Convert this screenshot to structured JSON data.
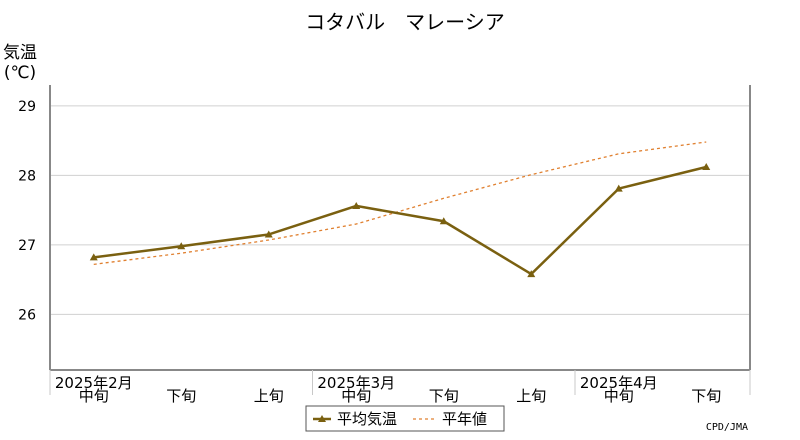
{
  "chart_data": {
    "type": "line",
    "title": "コタバル　マレーシア",
    "ylabel_line1": "気温",
    "ylabel_line2": "(℃)",
    "ylim": [
      25.2,
      29.3
    ],
    "yticks": [
      26,
      27,
      28,
      29
    ],
    "grid": true,
    "x": [
      "2025年2月 中旬",
      "2025年2月 下旬",
      "2025年3月 上旬",
      "2025年3月 中旬",
      "2025年3月 下旬",
      "2025年4月 上旬",
      "2025年4月 中旬",
      "2025年4月 下旬"
    ],
    "period_labels": [
      "中旬",
      "下旬",
      "上旬",
      "中旬",
      "下旬",
      "上旬",
      "中旬",
      "下旬"
    ],
    "month_labels": [
      "2025年2月",
      "2025年3月",
      "2025年4月"
    ],
    "series": [
      {
        "name": "平均気温",
        "color": "#7a6010",
        "values": [
          26.82,
          26.98,
          27.15,
          27.56,
          27.34,
          26.58,
          27.81,
          28.12
        ]
      },
      {
        "name": "平年値",
        "color": "#e08030",
        "values": [
          26.72,
          26.88,
          27.07,
          27.3,
          27.67,
          28.01,
          28.31,
          28.48
        ]
      }
    ],
    "legend_position": "bottom-center",
    "credit": "CPD/JMA"
  }
}
